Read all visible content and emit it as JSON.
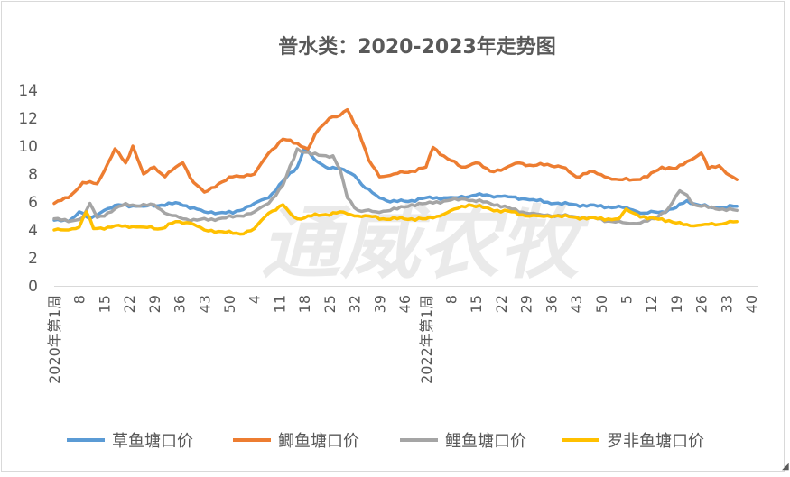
{
  "chart_data": {
    "type": "line",
    "title": "普水类：2020-2023年走势图",
    "watermark": "通威农牧",
    "xlabel": "",
    "ylabel": "",
    "ylim": [
      0,
      14
    ],
    "yticks": [
      "0",
      "2",
      "4",
      "6",
      "8",
      "10",
      "12",
      "14"
    ],
    "xtick_labels": [
      {
        "i": 0,
        "label": "2020年第1周"
      },
      {
        "i": 7,
        "label": "8"
      },
      {
        "i": 14,
        "label": "15"
      },
      {
        "i": 21,
        "label": "22"
      },
      {
        "i": 28,
        "label": "29"
      },
      {
        "i": 35,
        "label": "36"
      },
      {
        "i": 42,
        "label": "43"
      },
      {
        "i": 49,
        "label": "50"
      },
      {
        "i": 56,
        "label": "4"
      },
      {
        "i": 63,
        "label": "11"
      },
      {
        "i": 70,
        "label": "18"
      },
      {
        "i": 77,
        "label": "25"
      },
      {
        "i": 84,
        "label": "32"
      },
      {
        "i": 91,
        "label": "39"
      },
      {
        "i": 98,
        "label": "46"
      },
      {
        "i": 104,
        "label": "2022年第1周"
      },
      {
        "i": 111,
        "label": "8"
      },
      {
        "i": 118,
        "label": "15"
      },
      {
        "i": 125,
        "label": "22"
      },
      {
        "i": 132,
        "label": "29"
      },
      {
        "i": 139,
        "label": "36"
      },
      {
        "i": 146,
        "label": "43"
      },
      {
        "i": 153,
        "label": "50"
      },
      {
        "i": 160,
        "label": "5"
      },
      {
        "i": 167,
        "label": "12"
      },
      {
        "i": 174,
        "label": "19"
      },
      {
        "i": 181,
        "label": "26"
      },
      {
        "i": 188,
        "label": "33"
      },
      {
        "i": 195,
        "label": "40"
      }
    ],
    "x_count": 198,
    "grid": false,
    "legend_position": "bottom",
    "series": [
      {
        "name": "草鱼塘口价",
        "color": "#5B9BD5",
        "knots": [
          [
            0,
            4.7
          ],
          [
            4,
            4.6
          ],
          [
            7,
            5.3
          ],
          [
            10,
            4.8
          ],
          [
            14,
            5.4
          ],
          [
            18,
            5.8
          ],
          [
            25,
            5.7
          ],
          [
            35,
            5.9
          ],
          [
            42,
            5.3
          ],
          [
            50,
            5.2
          ],
          [
            56,
            5.9
          ],
          [
            60,
            6.3
          ],
          [
            64,
            7.5
          ],
          [
            68,
            8.5
          ],
          [
            70,
            9.9
          ],
          [
            73,
            9.0
          ],
          [
            76,
            8.5
          ],
          [
            80,
            8.4
          ],
          [
            84,
            7.9
          ],
          [
            87,
            7.0
          ],
          [
            90,
            6.5
          ],
          [
            94,
            6.0
          ],
          [
            100,
            6.1
          ],
          [
            104,
            6.3
          ],
          [
            112,
            6.3
          ],
          [
            118,
            6.5
          ],
          [
            125,
            6.4
          ],
          [
            132,
            6.2
          ],
          [
            140,
            5.9
          ],
          [
            146,
            5.8
          ],
          [
            152,
            5.7
          ],
          [
            160,
            5.6
          ],
          [
            165,
            5.2
          ],
          [
            170,
            5.3
          ],
          [
            174,
            5.6
          ],
          [
            177,
            6.1
          ],
          [
            180,
            5.8
          ],
          [
            184,
            5.6
          ],
          [
            191,
            5.7
          ]
        ]
      },
      {
        "name": "鲫鱼塘口价",
        "color": "#ED7D31",
        "knots": [
          [
            0,
            5.9
          ],
          [
            4,
            6.3
          ],
          [
            8,
            7.4
          ],
          [
            12,
            7.3
          ],
          [
            14,
            8.2
          ],
          [
            17,
            9.8
          ],
          [
            20,
            8.8
          ],
          [
            22,
            10.0
          ],
          [
            25,
            8.0
          ],
          [
            28,
            8.5
          ],
          [
            31,
            7.8
          ],
          [
            34,
            8.5
          ],
          [
            36,
            8.8
          ],
          [
            39,
            7.4
          ],
          [
            42,
            6.7
          ],
          [
            46,
            7.3
          ],
          [
            50,
            7.8
          ],
          [
            56,
            8.0
          ],
          [
            60,
            9.5
          ],
          [
            64,
            10.5
          ],
          [
            68,
            10.2
          ],
          [
            71,
            9.8
          ],
          [
            74,
            11.2
          ],
          [
            77,
            12.0
          ],
          [
            80,
            12.2
          ],
          [
            82,
            12.6
          ],
          [
            85,
            11.2
          ],
          [
            88,
            9.0
          ],
          [
            91,
            7.8
          ],
          [
            95,
            8.0
          ],
          [
            100,
            8.2
          ],
          [
            104,
            8.5
          ],
          [
            106,
            9.9
          ],
          [
            110,
            9.1
          ],
          [
            114,
            8.5
          ],
          [
            118,
            8.8
          ],
          [
            122,
            8.2
          ],
          [
            126,
            8.4
          ],
          [
            130,
            8.8
          ],
          [
            134,
            8.6
          ],
          [
            138,
            8.7
          ],
          [
            142,
            8.5
          ],
          [
            146,
            7.8
          ],
          [
            150,
            8.2
          ],
          [
            154,
            7.8
          ],
          [
            158,
            7.6
          ],
          [
            162,
            7.6
          ],
          [
            166,
            7.8
          ],
          [
            170,
            8.5
          ],
          [
            174,
            8.4
          ],
          [
            178,
            9.0
          ],
          [
            181,
            9.5
          ],
          [
            183,
            8.4
          ],
          [
            186,
            8.6
          ],
          [
            189,
            7.9
          ],
          [
            191,
            7.6
          ]
        ]
      },
      {
        "name": "鲤鱼塘口价",
        "color": "#A5A5A5",
        "knots": [
          [
            0,
            4.8
          ],
          [
            4,
            4.6
          ],
          [
            8,
            4.9
          ],
          [
            10,
            5.9
          ],
          [
            12,
            4.9
          ],
          [
            16,
            5.3
          ],
          [
            20,
            5.9
          ],
          [
            24,
            5.7
          ],
          [
            28,
            5.8
          ],
          [
            32,
            5.1
          ],
          [
            36,
            4.8
          ],
          [
            40,
            4.7
          ],
          [
            46,
            4.8
          ],
          [
            52,
            5.0
          ],
          [
            56,
            5.3
          ],
          [
            60,
            5.9
          ],
          [
            64,
            7.2
          ],
          [
            68,
            9.8
          ],
          [
            72,
            9.4
          ],
          [
            76,
            9.3
          ],
          [
            78,
            9.3
          ],
          [
            80,
            8.3
          ],
          [
            82,
            6.3
          ],
          [
            85,
            5.4
          ],
          [
            90,
            5.3
          ],
          [
            96,
            5.5
          ],
          [
            100,
            5.8
          ],
          [
            104,
            5.9
          ],
          [
            110,
            6.1
          ],
          [
            115,
            6.2
          ],
          [
            120,
            6.0
          ],
          [
            124,
            5.8
          ],
          [
            128,
            5.5
          ],
          [
            132,
            5.2
          ],
          [
            136,
            5.1
          ],
          [
            142,
            5.0
          ],
          [
            148,
            4.9
          ],
          [
            152,
            4.8
          ],
          [
            156,
            4.6
          ],
          [
            160,
            4.5
          ],
          [
            164,
            4.5
          ],
          [
            168,
            4.8
          ],
          [
            172,
            5.6
          ],
          [
            175,
            6.8
          ],
          [
            177,
            6.5
          ],
          [
            179,
            5.8
          ],
          [
            183,
            5.6
          ],
          [
            187,
            5.5
          ],
          [
            191,
            5.4
          ]
        ]
      },
      {
        "name": "罗非鱼塘口价",
        "color": "#FFC000",
        "knots": [
          [
            0,
            4.0
          ],
          [
            3,
            4.0
          ],
          [
            7,
            4.2
          ],
          [
            9,
            5.3
          ],
          [
            11,
            4.1
          ],
          [
            15,
            4.2
          ],
          [
            20,
            4.3
          ],
          [
            25,
            4.2
          ],
          [
            30,
            4.1
          ],
          [
            34,
            4.6
          ],
          [
            38,
            4.5
          ],
          [
            42,
            4.0
          ],
          [
            46,
            3.9
          ],
          [
            52,
            3.7
          ],
          [
            56,
            4.1
          ],
          [
            60,
            5.2
          ],
          [
            64,
            5.8
          ],
          [
            66,
            5.2
          ],
          [
            68,
            4.8
          ],
          [
            72,
            5.0
          ],
          [
            76,
            5.1
          ],
          [
            80,
            5.3
          ],
          [
            84,
            5.0
          ],
          [
            88,
            5.0
          ],
          [
            92,
            4.8
          ],
          [
            96,
            4.8
          ],
          [
            100,
            4.8
          ],
          [
            104,
            4.8
          ],
          [
            108,
            5.0
          ],
          [
            112,
            5.5
          ],
          [
            116,
            5.8
          ],
          [
            120,
            5.6
          ],
          [
            124,
            5.4
          ],
          [
            128,
            5.3
          ],
          [
            132,
            5.0
          ],
          [
            136,
            5.0
          ],
          [
            140,
            5.0
          ],
          [
            146,
            4.9
          ],
          [
            152,
            4.8
          ],
          [
            158,
            4.8
          ],
          [
            160,
            5.5
          ],
          [
            163,
            5.1
          ],
          [
            166,
            4.8
          ],
          [
            170,
            4.8
          ],
          [
            174,
            4.5
          ],
          [
            178,
            4.3
          ],
          [
            182,
            4.4
          ],
          [
            186,
            4.4
          ],
          [
            188,
            4.5
          ],
          [
            191,
            4.6
          ]
        ]
      }
    ]
  }
}
